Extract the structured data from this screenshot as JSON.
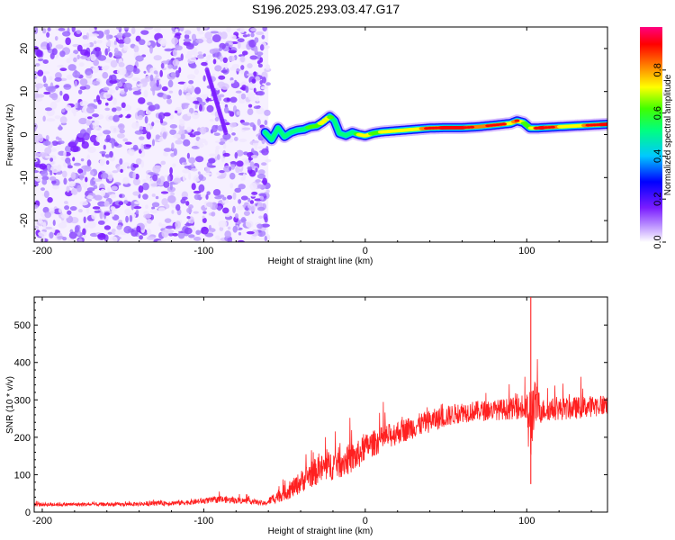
{
  "title": "S196.2025.293.03.47.G17",
  "chart_data": [
    {
      "type": "heatmap",
      "name": "spectrogram",
      "xlabel": "Height of straight line (km)",
      "ylabel": "Frequency (Hz)",
      "xlim": [
        -205,
        150
      ],
      "ylim": [
        -25,
        25
      ],
      "xticks": [
        -200,
        -100,
        0,
        100
      ],
      "xtick_labels": [
        "-200",
        "-100",
        "0",
        "100"
      ],
      "yticks": [
        -20,
        -10,
        0,
        10,
        20
      ],
      "ytick_labels": [
        "-20",
        "-10",
        "0",
        "10",
        "20"
      ],
      "noise_region_x": [
        -205,
        -60
      ],
      "ridge": {
        "x": [
          -62,
          -58,
          -54,
          -50,
          -46,
          -42,
          -38,
          -34,
          -30,
          -26,
          -22,
          -19,
          -16,
          -12,
          -8,
          -4,
          0,
          5,
          10,
          20,
          30,
          40,
          50,
          60,
          70,
          80,
          85,
          90,
          94,
          98,
          102,
          106,
          110,
          120,
          130,
          140,
          150
        ],
        "y": [
          0.5,
          -1.2,
          1.5,
          -0.5,
          0.5,
          1.0,
          1.2,
          1.8,
          2.0,
          3.0,
          4.2,
          3.2,
          0.3,
          -0.2,
          0.5,
          0.0,
          -0.3,
          0.3,
          0.6,
          0.9,
          1.2,
          1.5,
          1.6,
          1.6,
          1.8,
          2.2,
          2.4,
          2.6,
          3.2,
          2.8,
          1.5,
          1.5,
          1.6,
          1.8,
          2.0,
          2.2,
          2.4
        ],
        "amplitude": [
          0.3,
          0.4,
          0.45,
          0.45,
          0.55,
          0.6,
          0.65,
          0.75,
          0.7,
          0.8,
          0.75,
          0.6,
          0.45,
          0.55,
          0.6,
          0.75,
          0.85,
          0.7,
          0.75,
          0.85,
          0.8,
          0.9,
          0.95,
          0.95,
          0.85,
          0.92,
          0.9,
          0.8,
          0.9,
          0.7,
          0.75,
          0.9,
          0.95,
          0.85,
          0.8,
          0.9,
          0.95
        ]
      },
      "colorbar": {
        "label": "Normalized spectral amplitude",
        "range": [
          0,
          1
        ],
        "ticks": [
          0.0,
          0.2,
          0.4,
          0.6,
          0.8
        ],
        "tick_labels": [
          "0.0",
          "0.2",
          "0.4",
          "0.6",
          "0.8"
        ],
        "colors": [
          "#ffffff",
          "#7a1cff",
          "#0000ff",
          "#00c8ff",
          "#00ff00",
          "#ffff00",
          "#ff8000",
          "#ff0000",
          "#ff0080"
        ]
      }
    },
    {
      "type": "line",
      "name": "snr",
      "xlabel": "Height of straight line (km)",
      "ylabel": "SNR (10 * v/v)",
      "xlim": [
        -205,
        150
      ],
      "ylim": [
        0,
        575
      ],
      "xticks": [
        -200,
        -100,
        0,
        100
      ],
      "xtick_labels": [
        "-200",
        "-100",
        "0",
        "100"
      ],
      "yticks": [
        0,
        100,
        200,
        300,
        400,
        500
      ],
      "ytick_labels": [
        "0",
        "100",
        "200",
        "300",
        "400",
        "500"
      ],
      "color": "#ff2020",
      "envelope": {
        "x": [
          -205,
          -150,
          -110,
          -90,
          -70,
          -62,
          -55,
          -45,
          -35,
          -25,
          -15,
          -5,
          0,
          10,
          20,
          40,
          60,
          80,
          95,
          100,
          102,
          104,
          110,
          130,
          150
        ],
        "y": [
          20,
          20,
          25,
          33,
          28,
          22,
          40,
          60,
          95,
          115,
          130,
          145,
          170,
          190,
          210,
          240,
          265,
          270,
          275,
          270,
          200,
          280,
          270,
          275,
          285
        ],
        "noise": [
          10,
          10,
          14,
          18,
          15,
          12,
          35,
          50,
          70,
          80,
          85,
          80,
          70,
          70,
          65,
          60,
          55,
          55,
          60,
          80,
          280,
          150,
          60,
          60,
          55
        ]
      }
    }
  ]
}
